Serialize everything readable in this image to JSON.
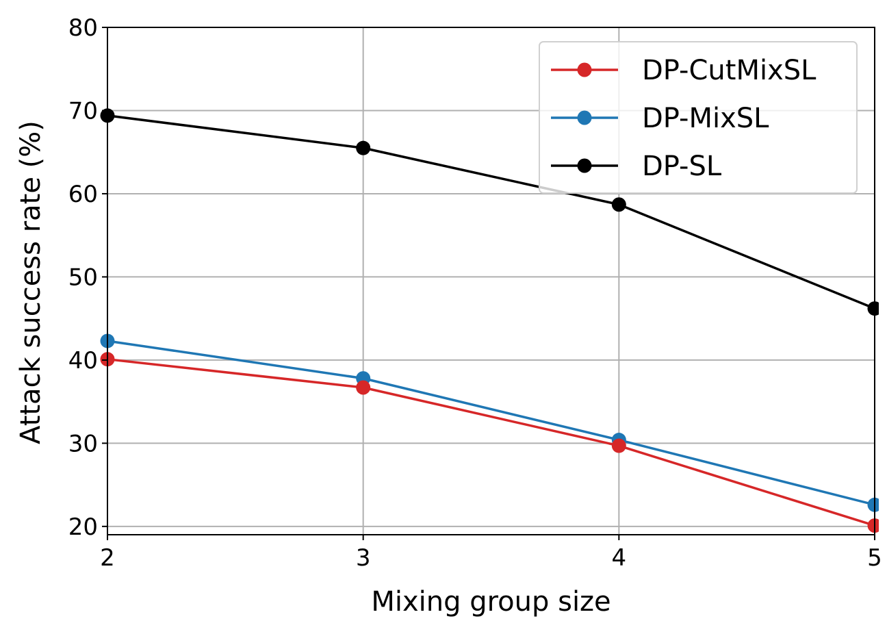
{
  "chart_data": {
    "type": "line",
    "title": "",
    "xlabel": "Mixing group size",
    "ylabel": "Attack success rate (%)",
    "x": [
      2,
      3,
      4,
      5
    ],
    "xticks": [
      "2",
      "3",
      "4",
      "5"
    ],
    "yticks": [
      "20",
      "30",
      "40",
      "50",
      "60",
      "70",
      "80"
    ],
    "xlim": [
      2,
      5
    ],
    "ylim": [
      19,
      80
    ],
    "grid": true,
    "legend_position": "top-right",
    "series": [
      {
        "name": "DP-CutMixSL",
        "color": "#d62728",
        "values": [
          40.1,
          36.7,
          29.7,
          20.1
        ]
      },
      {
        "name": "DP-MixSL",
        "color": "#1f77b4",
        "values": [
          42.3,
          37.8,
          30.4,
          22.6
        ]
      },
      {
        "name": "DP-SL",
        "color": "#000000",
        "values": [
          69.4,
          65.5,
          58.7,
          46.2
        ]
      }
    ]
  }
}
